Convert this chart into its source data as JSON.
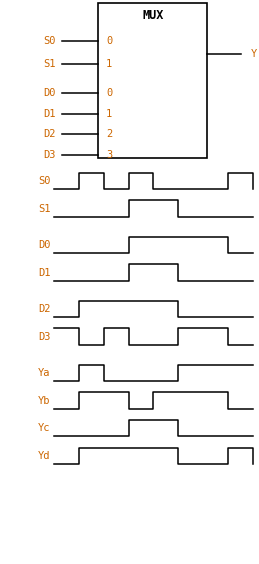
{
  "bg_color": "#ffffff",
  "label_color": "#cc6600",
  "line_color": "#000000",
  "signals": {
    "S0": [
      0,
      0,
      1,
      1,
      2,
      0,
      3,
      1,
      4,
      0,
      5,
      0,
      6,
      0,
      7,
      1,
      8,
      0
    ],
    "S1": [
      0,
      0,
      1,
      0,
      2,
      0,
      3,
      1,
      4,
      1,
      5,
      0,
      6,
      0,
      7,
      0,
      8,
      0
    ],
    "D0": [
      0,
      0,
      1,
      0,
      2,
      0,
      3,
      1,
      4,
      1,
      5,
      1,
      6,
      1,
      7,
      0,
      8,
      0
    ],
    "D1": [
      0,
      0,
      1,
      0,
      2,
      0,
      3,
      1,
      4,
      1,
      5,
      0,
      6,
      0,
      7,
      0,
      8,
      0
    ],
    "D2": [
      0,
      0,
      1,
      1,
      2,
      1,
      3,
      1,
      4,
      1,
      5,
      0,
      6,
      0,
      7,
      0,
      8,
      0
    ],
    "D3": [
      0,
      1,
      1,
      0,
      2,
      1,
      3,
      0,
      4,
      0,
      5,
      1,
      6,
      1,
      7,
      0,
      8,
      0
    ],
    "Ya": [
      0,
      0,
      1,
      1,
      2,
      0,
      3,
      0,
      4,
      0,
      5,
      1,
      6,
      1,
      7,
      1,
      8,
      1
    ],
    "Yb": [
      0,
      0,
      1,
      1,
      2,
      1,
      3,
      0,
      4,
      1,
      5,
      1,
      6,
      1,
      7,
      0,
      8,
      0
    ],
    "Yc": [
      0,
      0,
      1,
      0,
      2,
      0,
      3,
      1,
      4,
      1,
      5,
      0,
      6,
      0,
      7,
      0,
      8,
      0
    ],
    "Yd": [
      0,
      0,
      1,
      1,
      2,
      1,
      3,
      1,
      4,
      1,
      5,
      0,
      6,
      0,
      7,
      1,
      8,
      0
    ]
  },
  "signal_order": [
    "S0",
    "S1",
    "D0",
    "D1",
    "D2",
    "D3",
    "Ya",
    "Yb",
    "Yc",
    "Yd"
  ],
  "gaps_after": [
    "S1",
    "D1",
    "D3"
  ]
}
